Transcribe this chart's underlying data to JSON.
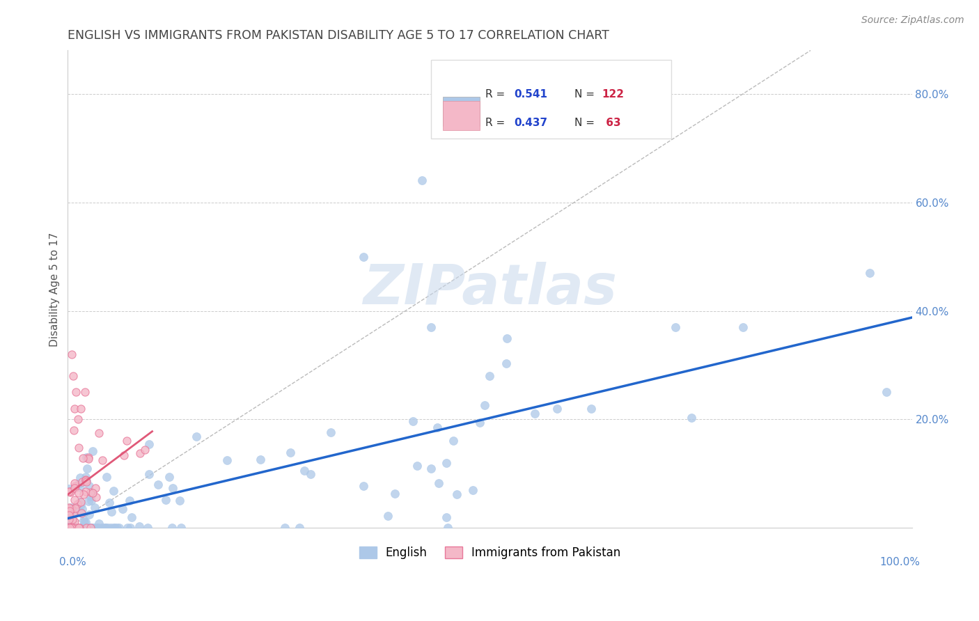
{
  "title": "ENGLISH VS IMMIGRANTS FROM PAKISTAN DISABILITY AGE 5 TO 17 CORRELATION CHART",
  "source": "Source: ZipAtlas.com",
  "ylabel": "Disability Age 5 to 17",
  "watermark": "ZIPatlas",
  "legend_english": "English",
  "legend_pakistan": "Immigrants from Pakistan",
  "R_english": 0.541,
  "N_english": 122,
  "R_pakistan": 0.437,
  "N_pakistan": 63,
  "english_color": "#adc8e8",
  "english_edge_color": "#adc8e8",
  "english_line_color": "#2266cc",
  "pakistan_color": "#f4b8c8",
  "pakistan_edge_color": "#e8789a",
  "pakistan_line_color": "#e05878",
  "background_color": "#ffffff",
  "grid_color": "#cccccc",
  "title_color": "#444444",
  "axis_label_color": "#555555",
  "tick_color": "#5588cc",
  "R_color": "#2244cc",
  "N_color": "#cc2244",
  "xlim": [
    0.0,
    1.0
  ],
  "ylim": [
    0.0,
    0.88
  ],
  "yticks": [
    0.2,
    0.4,
    0.6,
    0.8
  ],
  "ytick_labels": [
    "20.0%",
    "40.0%",
    "60.0%",
    "80.0%"
  ]
}
